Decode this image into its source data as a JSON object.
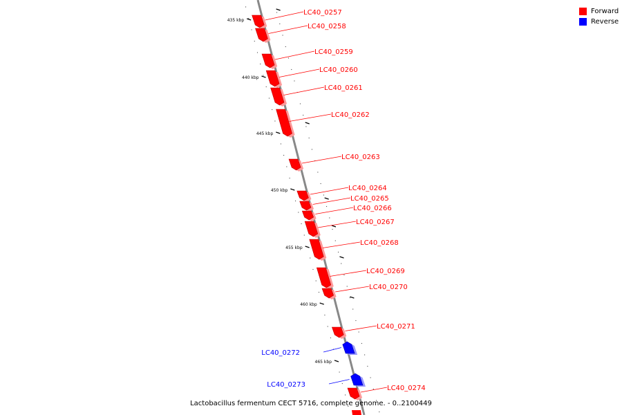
{
  "legend": {
    "forward_label": "Forward",
    "reverse_label": "Reverse",
    "forward_color": "#ff0000",
    "reverse_color": "#0000ff"
  },
  "footer": "Lactobacillus fermentum CECT 5716, complete genome. - 0..2100449",
  "ruler": {
    "unit": "kbp",
    "major_ticks_kbp": [
      435,
      440,
      445,
      450,
      455,
      460,
      465
    ]
  },
  "genes": [
    {
      "name": "LC40_0257",
      "strand": "forward"
    },
    {
      "name": "LC40_0258",
      "strand": "forward"
    },
    {
      "name": "LC40_0259",
      "strand": "forward"
    },
    {
      "name": "LC40_0260",
      "strand": "forward"
    },
    {
      "name": "LC40_0261",
      "strand": "forward"
    },
    {
      "name": "LC40_0262",
      "strand": "forward"
    },
    {
      "name": "LC40_0263",
      "strand": "forward"
    },
    {
      "name": "LC40_0264",
      "strand": "forward"
    },
    {
      "name": "LC40_0265",
      "strand": "forward"
    },
    {
      "name": "LC40_0266",
      "strand": "forward"
    },
    {
      "name": "LC40_0267",
      "strand": "forward"
    },
    {
      "name": "LC40_0268",
      "strand": "forward"
    },
    {
      "name": "LC40_0269",
      "strand": "forward"
    },
    {
      "name": "LC40_0270",
      "strand": "forward"
    },
    {
      "name": "LC40_0271",
      "strand": "forward"
    },
    {
      "name": "LC40_0272",
      "strand": "reverse"
    },
    {
      "name": "LC40_0273",
      "strand": "reverse"
    },
    {
      "name": "LC40_0274",
      "strand": "forward"
    }
  ]
}
